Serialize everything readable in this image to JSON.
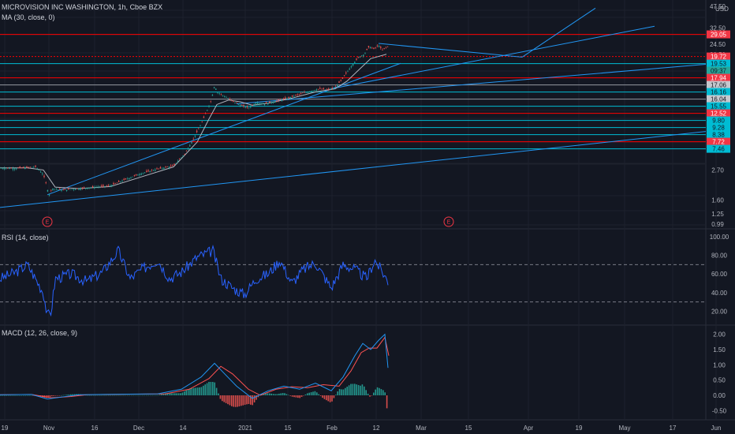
{
  "header": {
    "symbol": "MICROVISION INC WASHINGTON",
    "interval": "1h",
    "exchange": "Cboe BZX",
    "currency": "USD",
    "ma_label": "MA (30, close, 0)",
    "rsi_label": "RSI (14, close)",
    "macd_label": "MACD (12, 26, close, 9)"
  },
  "colors": {
    "background": "#131722",
    "grid": "#1e222d",
    "up": "#26a69a",
    "down": "#ef5350",
    "ma": "#b2b5be",
    "rsi": "#2962ff",
    "macd": "#2196f3",
    "signal": "#ff5252",
    "resistance": "#ff0000",
    "support": "#00bcd4",
    "trend": "#2196f3"
  },
  "chart_data": [
    {
      "type": "candlestick",
      "name": "price",
      "y_scale": "log",
      "ylim": [
        0.99,
        47.5
      ],
      "y_ticks": [
        "47.50",
        "32.50",
        "24.50",
        "20.50",
        "17.94",
        "12.50",
        "9.80",
        "7.72",
        "4.70",
        "2.70",
        "1.60",
        "1.25",
        "0.99"
      ],
      "x_ticks": [
        "19",
        "Nov",
        "16",
        "Dec",
        "14",
        "2021",
        "15",
        "Feb",
        "12",
        "Mar",
        "15",
        "Apr",
        "19",
        "May",
        "17",
        "Jun"
      ],
      "price_labels": [
        {
          "text": "29.05",
          "type": "resistance"
        },
        {
          "text": "19.72",
          "type": "resistance"
        },
        {
          "text": "19.53",
          "type": "support"
        },
        {
          "text": "09:37",
          "type": "timer"
        },
        {
          "text": "17.94",
          "type": "resistance"
        },
        {
          "text": "17.06",
          "type": "neutral"
        },
        {
          "text": "16.16",
          "type": "support"
        },
        {
          "text": "16.04",
          "type": "neutral"
        },
        {
          "text": "15.55",
          "type": "support"
        },
        {
          "text": "12.52",
          "type": "resistance"
        },
        {
          "text": "9.80",
          "type": "support"
        },
        {
          "text": "9.28",
          "type": "support"
        },
        {
          "text": "8.38",
          "type": "support"
        },
        {
          "text": "7.72",
          "type": "resistance"
        },
        {
          "text": "7.46",
          "type": "support"
        }
      ],
      "earnings_markers": [
        "E",
        "E"
      ],
      "price_path": [
        [
          0,
          2.8
        ],
        [
          20,
          2.78
        ],
        [
          35,
          2.82
        ],
        [
          45,
          2.85
        ],
        [
          55,
          2.5
        ],
        [
          62,
          1.72
        ],
        [
          66,
          1.95
        ],
        [
          80,
          1.9
        ],
        [
          100,
          1.95
        ],
        [
          120,
          2.0
        ],
        [
          140,
          2.05
        ],
        [
          160,
          2.3
        ],
        [
          180,
          2.55
        ],
        [
          200,
          2.75
        ],
        [
          220,
          2.9
        ],
        [
          235,
          3.6
        ],
        [
          245,
          4.6
        ],
        [
          255,
          6.0
        ],
        [
          262,
          7.5
        ],
        [
          268,
          9.2
        ],
        [
          272,
          11.8
        ],
        [
          276,
          10.5
        ],
        [
          285,
          9.8
        ],
        [
          295,
          9.0
        ],
        [
          305,
          8.4
        ],
        [
          315,
          8.0
        ],
        [
          325,
          8.8
        ],
        [
          335,
          8.6
        ],
        [
          350,
          9.0
        ],
        [
          365,
          9.5
        ],
        [
          380,
          10.2
        ],
        [
          395,
          10.8
        ],
        [
          405,
          11.2
        ],
        [
          415,
          11.0
        ],
        [
          425,
          11.4
        ],
        [
          435,
          13.5
        ],
        [
          445,
          16.5
        ],
        [
          455,
          19.5
        ],
        [
          462,
          20.5
        ],
        [
          468,
          23.5
        ],
        [
          474,
          22.5
        ],
        [
          480,
          24.0
        ],
        [
          485,
          22.0
        ],
        [
          490,
          23.3
        ]
      ],
      "ma_path": [
        [
          0,
          2.8
        ],
        [
          35,
          2.8
        ],
        [
          55,
          2.7
        ],
        [
          70,
          2.0
        ],
        [
          100,
          1.95
        ],
        [
          140,
          2.02
        ],
        [
          180,
          2.4
        ],
        [
          220,
          2.85
        ],
        [
          250,
          4.4
        ],
        [
          265,
          6.6
        ],
        [
          275,
          8.5
        ],
        [
          290,
          9.2
        ],
        [
          305,
          8.9
        ],
        [
          320,
          8.4
        ],
        [
          340,
          8.7
        ],
        [
          370,
          9.5
        ],
        [
          400,
          10.6
        ],
        [
          425,
          11.2
        ],
        [
          440,
          12.8
        ],
        [
          455,
          15.6
        ],
        [
          470,
          19.0
        ],
        [
          490,
          20.5
        ]
      ]
    },
    {
      "type": "line",
      "name": "RSI",
      "ylim": [
        0,
        100
      ],
      "y_ticks": [
        "100.00",
        "80.00",
        "60.00",
        "40.00",
        "20.00"
      ],
      "bands": [
        70,
        30
      ],
      "values": [
        [
          0,
          55
        ],
        [
          20,
          62
        ],
        [
          35,
          70
        ],
        [
          45,
          55
        ],
        [
          55,
          40
        ],
        [
          60,
          15
        ],
        [
          65,
          20
        ],
        [
          70,
          55
        ],
        [
          90,
          60
        ],
        [
          110,
          52
        ],
        [
          130,
          62
        ],
        [
          150,
          85
        ],
        [
          165,
          55
        ],
        [
          180,
          65
        ],
        [
          200,
          75
        ],
        [
          215,
          55
        ],
        [
          230,
          62
        ],
        [
          250,
          78
        ],
        [
          270,
          85
        ],
        [
          280,
          55
        ],
        [
          295,
          45
        ],
        [
          310,
          38
        ],
        [
          325,
          55
        ],
        [
          340,
          60
        ],
        [
          355,
          75
        ],
        [
          370,
          50
        ],
        [
          385,
          65
        ],
        [
          400,
          72
        ],
        [
          420,
          45
        ],
        [
          435,
          70
        ],
        [
          450,
          65
        ],
        [
          465,
          55
        ],
        [
          475,
          75
        ],
        [
          485,
          62
        ],
        [
          492,
          52
        ]
      ]
    },
    {
      "type": "line",
      "name": "MACD",
      "y_ticks": [
        "2.00",
        "1.50",
        "1.00",
        "0.50",
        "0.00",
        "-0.50"
      ],
      "ylim": [
        -0.75,
        2.25
      ],
      "macd": [
        [
          0,
          0.02
        ],
        [
          40,
          0.03
        ],
        [
          60,
          -0.12
        ],
        [
          80,
          -0.05
        ],
        [
          100,
          0.02
        ],
        [
          200,
          0.05
        ],
        [
          230,
          0.2
        ],
        [
          255,
          0.6
        ],
        [
          272,
          1.05
        ],
        [
          285,
          0.7
        ],
        [
          300,
          0.3
        ],
        [
          320,
          -0.1
        ],
        [
          340,
          0.15
        ],
        [
          360,
          0.3
        ],
        [
          380,
          0.2
        ],
        [
          400,
          0.4
        ],
        [
          420,
          0.15
        ],
        [
          435,
          0.6
        ],
        [
          450,
          1.3
        ],
        [
          460,
          1.7
        ],
        [
          470,
          1.5
        ],
        [
          480,
          1.8
        ],
        [
          488,
          2.0
        ],
        [
          492,
          0.9
        ]
      ],
      "signal": [
        [
          0,
          0.02
        ],
        [
          40,
          0.03
        ],
        [
          65,
          -0.08
        ],
        [
          90,
          -0.04
        ],
        [
          110,
          0.02
        ],
        [
          210,
          0.05
        ],
        [
          240,
          0.2
        ],
        [
          265,
          0.55
        ],
        [
          280,
          0.95
        ],
        [
          295,
          0.7
        ],
        [
          315,
          0.2
        ],
        [
          330,
          0.0
        ],
        [
          350,
          0.2
        ],
        [
          370,
          0.28
        ],
        [
          390,
          0.25
        ],
        [
          410,
          0.35
        ],
        [
          430,
          0.3
        ],
        [
          445,
          0.8
        ],
        [
          458,
          1.4
        ],
        [
          468,
          1.55
        ],
        [
          478,
          1.55
        ],
        [
          488,
          1.9
        ],
        [
          493,
          1.3
        ]
      ],
      "histogram_x_range": [
        0,
        495
      ]
    }
  ]
}
